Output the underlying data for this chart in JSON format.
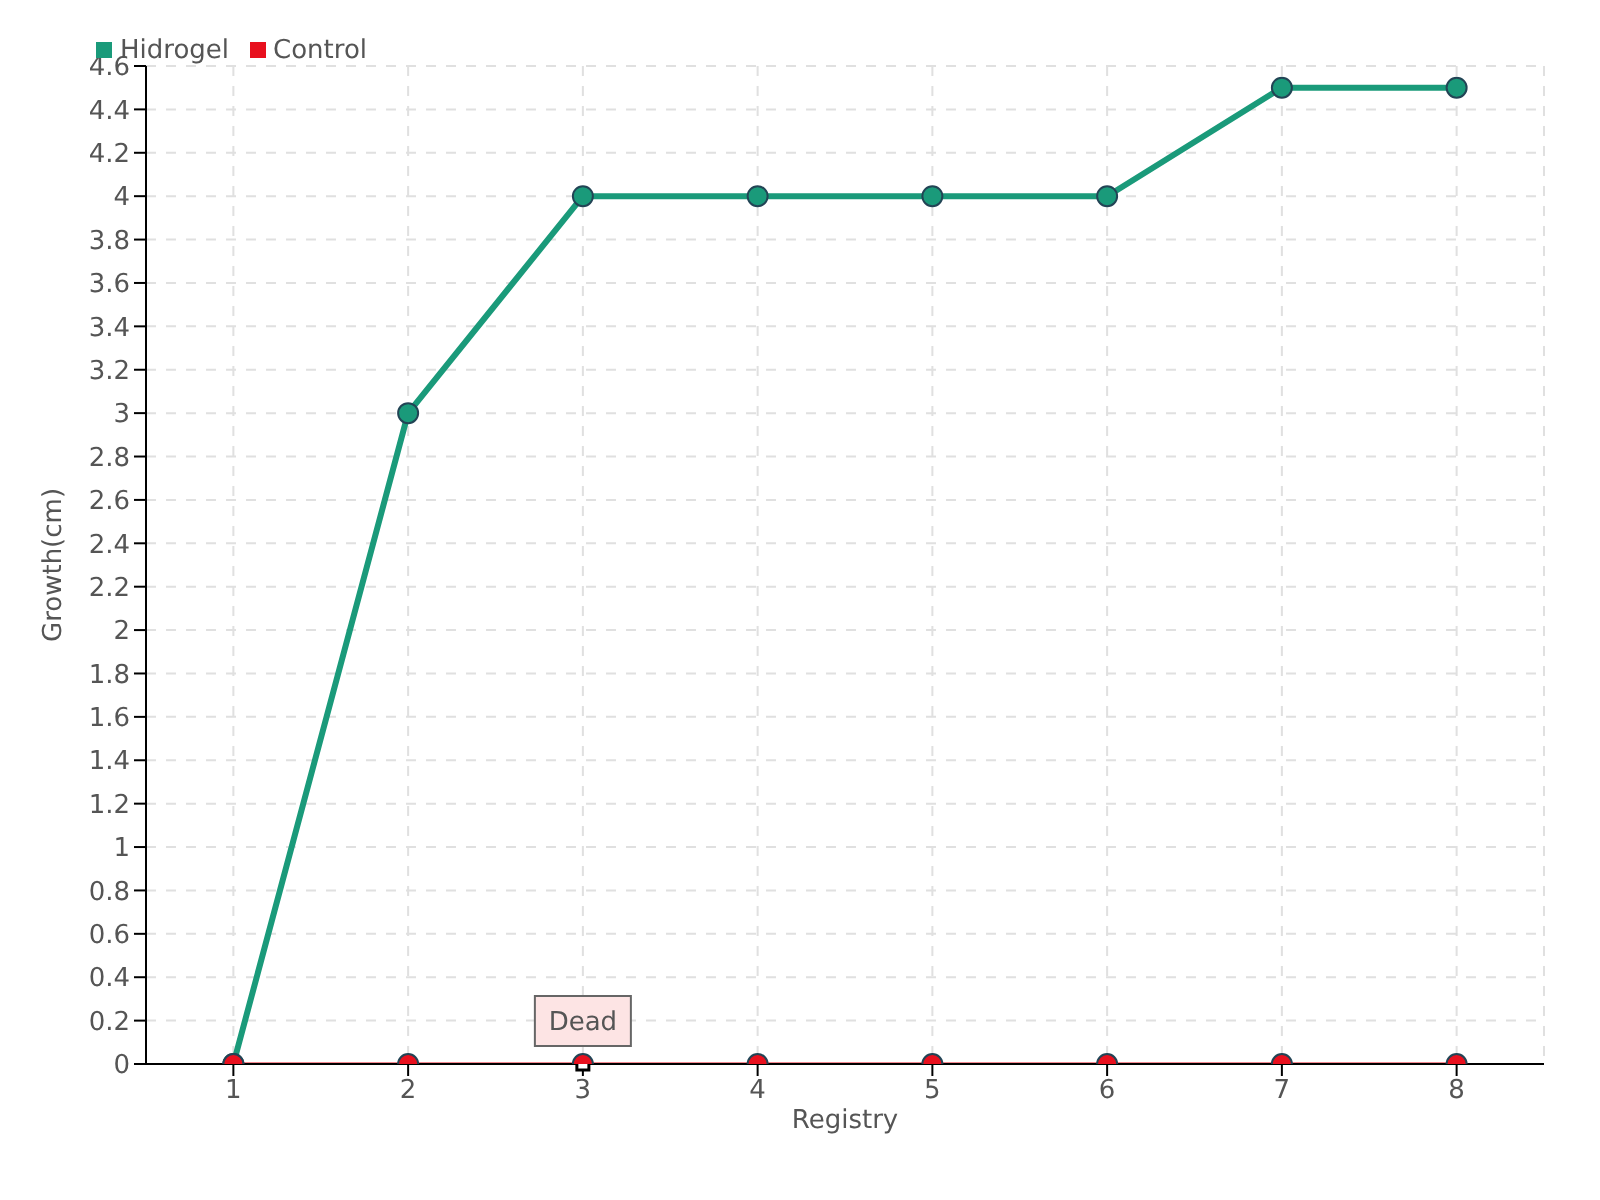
{
  "chart_data": {
    "type": "line",
    "xlabel": "Registry",
    "ylabel": "Growth(cm)",
    "categories": [
      "1",
      "2",
      "3",
      "4",
      "5",
      "6",
      "7",
      "8"
    ],
    "series": [
      {
        "name": "Hidrogel",
        "color": "#1a9a7a",
        "values": [
          0,
          3,
          4,
          4,
          4,
          4,
          4.5,
          4.5
        ]
      },
      {
        "name": "Control",
        "color": "#e8101e",
        "values": [
          0,
          0,
          0,
          0,
          0,
          0,
          0,
          0
        ]
      }
    ],
    "ylim": [
      0,
      4.6
    ],
    "yticks": [
      0,
      0.2,
      0.4,
      0.6,
      0.8,
      1,
      1.2,
      1.4,
      1.6,
      1.8,
      2,
      2.2,
      2.4,
      2.6,
      2.8,
      3,
      3.2,
      3.4,
      3.6,
      3.8,
      4,
      4.2,
      4.4,
      4.6
    ],
    "annotations": [
      {
        "text": "Dead",
        "x": "3",
        "y": 0
      }
    ],
    "grid": true,
    "legend": "top left",
    "marker": "circle",
    "line_style": "solid"
  }
}
